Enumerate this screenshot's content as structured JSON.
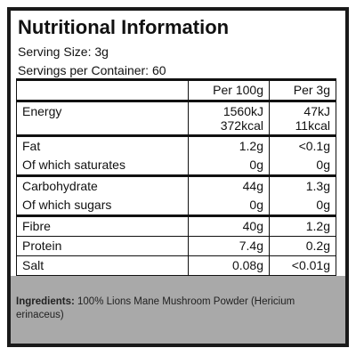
{
  "header": {
    "title": "Nutritional Information",
    "serving_size": "Serving Size: 3g",
    "servings": "Servings per Container: 60"
  },
  "table": {
    "columns": [
      "Per 100g",
      "Per 3g"
    ],
    "groups": [
      [
        {
          "label": "Energy",
          "per100": [
            "1560kJ",
            "372kcal"
          ],
          "per3": [
            "47kJ",
            "11kcal"
          ]
        }
      ],
      [
        {
          "label": "Fat",
          "per100": [
            "1.2g"
          ],
          "per3": [
            "<0.1g"
          ]
        },
        {
          "label": "Of which saturates",
          "per100": [
            "0g"
          ],
          "per3": [
            "0g"
          ]
        }
      ],
      [
        {
          "label": "Carbohydrate",
          "per100": [
            "44g"
          ],
          "per3": [
            "1.3g"
          ]
        },
        {
          "label": "Of which sugars",
          "per100": [
            "0g"
          ],
          "per3": [
            "0g"
          ]
        }
      ],
      [
        {
          "label": "Fibre",
          "per100": [
            "40g"
          ],
          "per3": [
            "1.2g"
          ]
        },
        {
          "label": "Protein",
          "per100": [
            "7.4g"
          ],
          "per3": [
            "0.2g"
          ]
        },
        {
          "label": "Salt",
          "per100": [
            "0.08g"
          ],
          "per3": [
            "<0.01g"
          ]
        }
      ]
    ]
  },
  "ingredients": {
    "label": "Ingredients:",
    "text": "100% Lions Mane Mushroom Powder (Hericium erinaceus)"
  }
}
